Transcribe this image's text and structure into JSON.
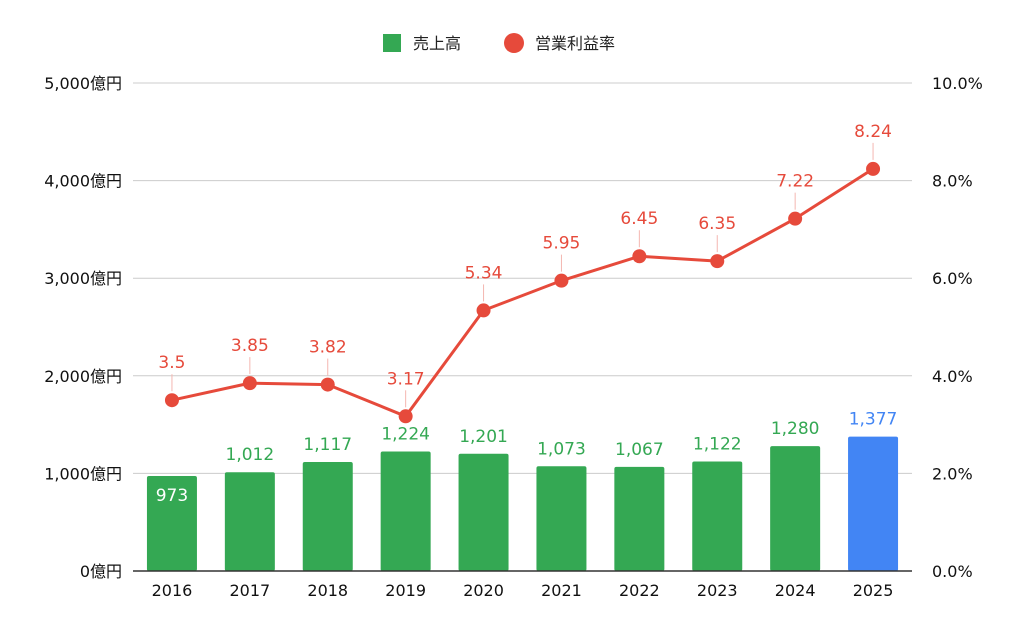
{
  "legend": {
    "bar_label": "売上高",
    "line_label": "営業利益率"
  },
  "colors": {
    "bar": "#34a853",
    "bar_highlight": "#4285f4",
    "line": "#e64a3b",
    "grid": "#cccccc",
    "axis": "#333333"
  },
  "chart_data": {
    "type": "bar",
    "categories": [
      "2016",
      "2017",
      "2018",
      "2019",
      "2020",
      "2021",
      "2022",
      "2023",
      "2024",
      "2025"
    ],
    "series": [
      {
        "name": "売上高",
        "type": "bar",
        "axis": "left",
        "values": [
          973,
          1012,
          1117,
          1224,
          1201,
          1073,
          1067,
          1122,
          1280,
          1377
        ],
        "labels": [
          "973",
          "1,012",
          "1,117",
          "1,224",
          "1,201",
          "1,073",
          "1,067",
          "1,122",
          "1,280",
          "1,377"
        ],
        "highlight_index": 9
      },
      {
        "name": "営業利益率",
        "type": "line",
        "axis": "right",
        "values": [
          3.5,
          3.85,
          3.82,
          3.17,
          5.34,
          5.95,
          6.45,
          6.35,
          7.22,
          8.24
        ],
        "labels": [
          "3.5",
          "3.85",
          "3.82",
          "3.17",
          "5.34",
          "5.95",
          "6.45",
          "6.35",
          "7.22",
          "8.24"
        ]
      }
    ],
    "y_left": {
      "min": 0,
      "max": 5000,
      "ticks": [
        0,
        1000,
        2000,
        3000,
        4000,
        5000
      ],
      "tick_labels": [
        "0億円",
        "1,000億円",
        "2,000億円",
        "3,000億円",
        "4,000億円",
        "5,000億円"
      ]
    },
    "y_right": {
      "min": 0,
      "max": 10,
      "ticks": [
        0,
        2,
        4,
        6,
        8,
        10
      ],
      "tick_labels": [
        "0.0%",
        "2.0%",
        "4.0%",
        "6.0%",
        "8.0%",
        "10.0%"
      ]
    },
    "grid": true,
    "legend_position": "top-center"
  }
}
